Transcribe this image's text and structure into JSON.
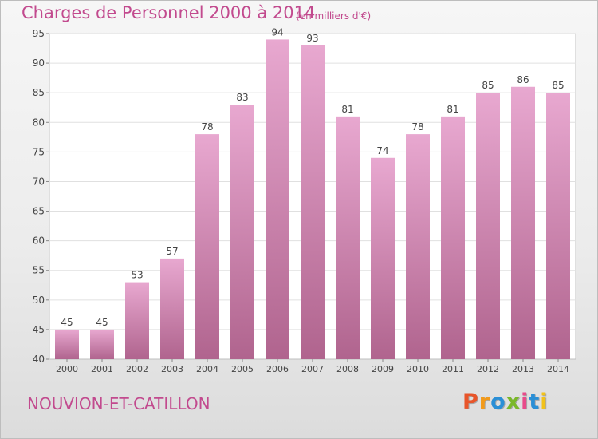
{
  "header": {
    "title": "Charges de Personnel 2000 à 2014",
    "unit": "(en milliers d'€)"
  },
  "footer": {
    "commune": "NOUVION-ET-CATILLON",
    "logo_letters": [
      "P",
      "r",
      "o",
      "x",
      "i",
      "t",
      "i"
    ]
  },
  "colors": {
    "bar_top": "#e8a8d0",
    "bar_bottom": "#b0648e",
    "accent": "#c24a8e",
    "logo": [
      "#e8552a",
      "#f29a1a",
      "#2a8fd6",
      "#7ab829",
      "#e84b8a",
      "#2a8fd6",
      "#f2c21a"
    ]
  },
  "chart_data": {
    "type": "bar",
    "title": "Charges de Personnel 2000 à 2014",
    "categories": [
      "2000",
      "2001",
      "2002",
      "2003",
      "2004",
      "2005",
      "2006",
      "2007",
      "2008",
      "2009",
      "2010",
      "2011",
      "2012",
      "2013",
      "2014"
    ],
    "values": [
      45,
      45,
      53,
      57,
      78,
      83,
      94,
      93,
      81,
      74,
      78,
      81,
      85,
      86,
      85
    ],
    "ylim": [
      40,
      95
    ],
    "yticks": [
      40,
      45,
      50,
      55,
      60,
      65,
      70,
      75,
      80,
      85,
      90,
      95
    ],
    "grid": true,
    "data_labels": true,
    "xlabel": "",
    "ylabel": ""
  }
}
